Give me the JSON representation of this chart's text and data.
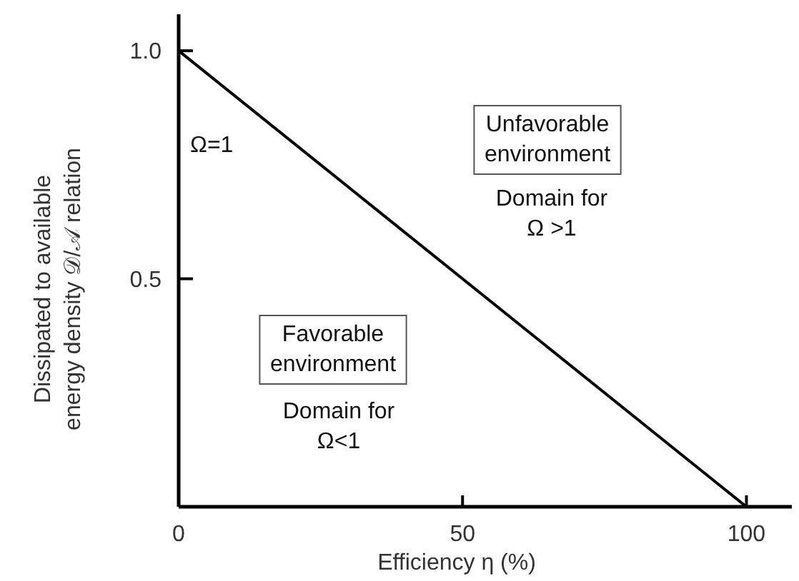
{
  "chart_data": {
    "type": "line",
    "xlabel": "Efficiency η (%)",
    "ylabel": "Dissipated to available\nenergy density 𝒟/𝒜 relation",
    "x": [
      0,
      100
    ],
    "series": [
      {
        "color": "#000000",
        "values": [
          1.0,
          0.0
        ]
      }
    ],
    "xlim": [
      0,
      108
    ],
    "ylim": [
      0,
      1.08
    ],
    "xticks": [
      0,
      50,
      100
    ],
    "yticks": [
      {
        "value": 0.5,
        "label": "0.5"
      },
      {
        "value": 1.0,
        "label": "1.0"
      }
    ],
    "marker": "none",
    "line_style": "solid",
    "grid": false,
    "annotations": [
      "Ω=1",
      "Unfavorable\nenvironment",
      "Domain for\nΩ >1",
      "Favorable\nenvironment",
      "Domain for\nΩ<1"
    ]
  }
}
